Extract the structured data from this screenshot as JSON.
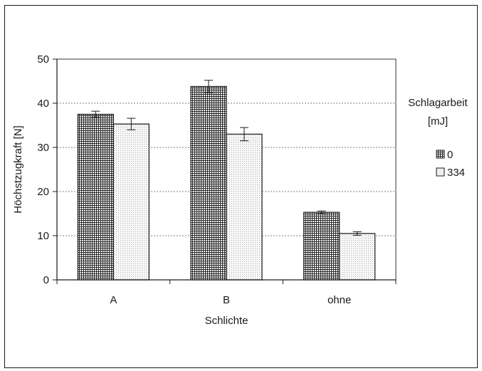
{
  "chart_data": {
    "type": "bar",
    "categories": [
      "A",
      "B",
      "ohne"
    ],
    "series": [
      {
        "name": "0",
        "values": [
          37.5,
          43.8,
          15.3
        ],
        "errors": [
          0.7,
          1.4,
          0.3
        ],
        "pattern": "grid"
      },
      {
        "name": "334",
        "values": [
          35.3,
          33.0,
          10.5
        ],
        "errors": [
          1.3,
          1.5,
          0.4
        ],
        "pattern": "dots"
      }
    ],
    "xlabel": "Schlichte",
    "ylabel": "Höchstzugkraft [N]",
    "ylim": [
      0,
      50
    ],
    "yticks": [
      0,
      10,
      20,
      30,
      40,
      50
    ],
    "grid": true,
    "legend": {
      "title_line1": "Schlagarbeit",
      "title_line2": "[mJ]",
      "placement": "right"
    }
  }
}
